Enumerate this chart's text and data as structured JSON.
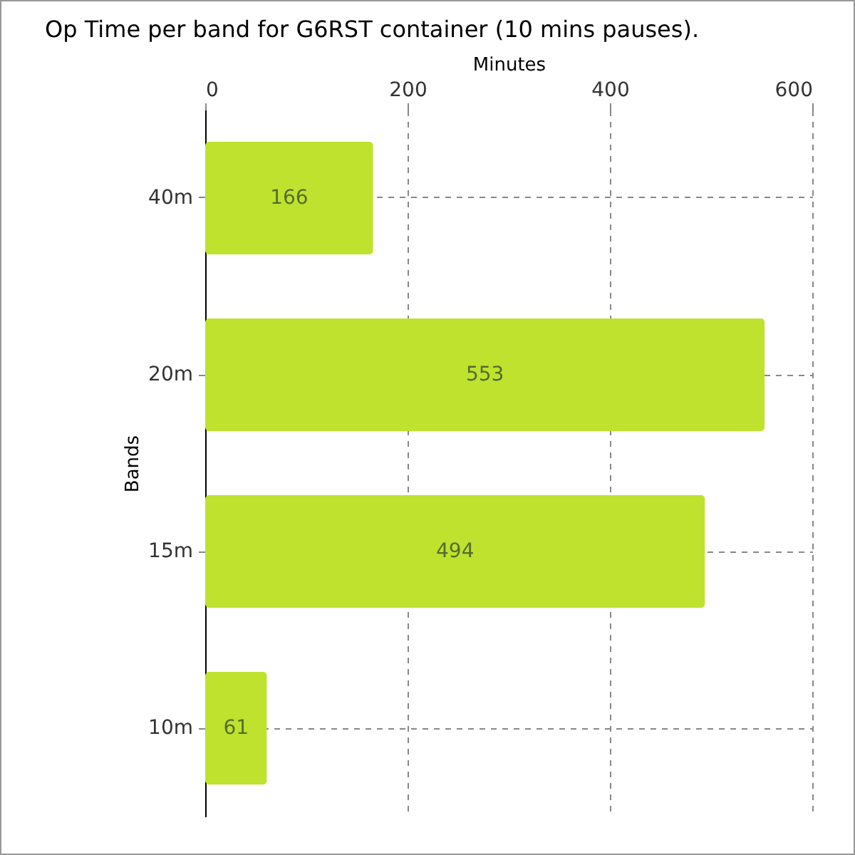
{
  "chart_data": {
    "type": "bar",
    "orientation": "horizontal",
    "title": "Op Time per band for G6RST container (10 mins pauses).",
    "xlabel": "Minutes",
    "ylabel": "Bands",
    "categories": [
      "40m",
      "20m",
      "15m",
      "10m"
    ],
    "values": [
      166,
      553,
      494,
      61
    ],
    "color": "#bfe22e",
    "xlim": [
      0,
      600
    ],
    "xticks": [
      0,
      200,
      400,
      600
    ],
    "grid": true,
    "data_labels": true
  }
}
